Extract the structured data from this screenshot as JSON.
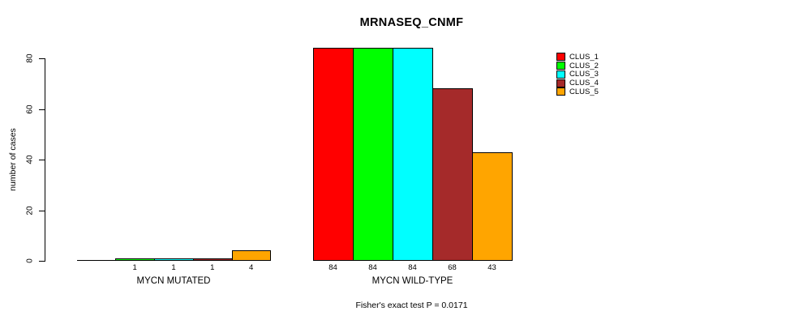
{
  "chart_data": {
    "type": "bar",
    "title": "MRNASEQ_CNMF",
    "ylabel": "number of cases",
    "xlabel": "",
    "ylim": [
      0,
      84
    ],
    "yticks": [
      0,
      20,
      40,
      60,
      80
    ],
    "grid": false,
    "legend_position": "right",
    "categories": [
      "MYCN MUTATED",
      "MYCN WILD-TYPE"
    ],
    "series": [
      {
        "name": "CLUS_1",
        "color": "#FF0000",
        "values": [
          0,
          84
        ]
      },
      {
        "name": "CLUS_2",
        "color": "#00FF00",
        "values": [
          1,
          84
        ]
      },
      {
        "name": "CLUS_3",
        "color": "#00FFFF",
        "values": [
          1,
          84
        ]
      },
      {
        "name": "CLUS_4",
        "color": "#A52A2A",
        "values": [
          1,
          68
        ]
      },
      {
        "name": "CLUS_5",
        "color": "#FFA500",
        "values": [
          4,
          43
        ]
      }
    ],
    "bar_labels": [
      [
        "",
        "1",
        "1",
        "1",
        "4"
      ],
      [
        "84",
        "84",
        "84",
        "68",
        "43"
      ]
    ],
    "annotation": "Fisher's exact test P = 0.0171"
  }
}
